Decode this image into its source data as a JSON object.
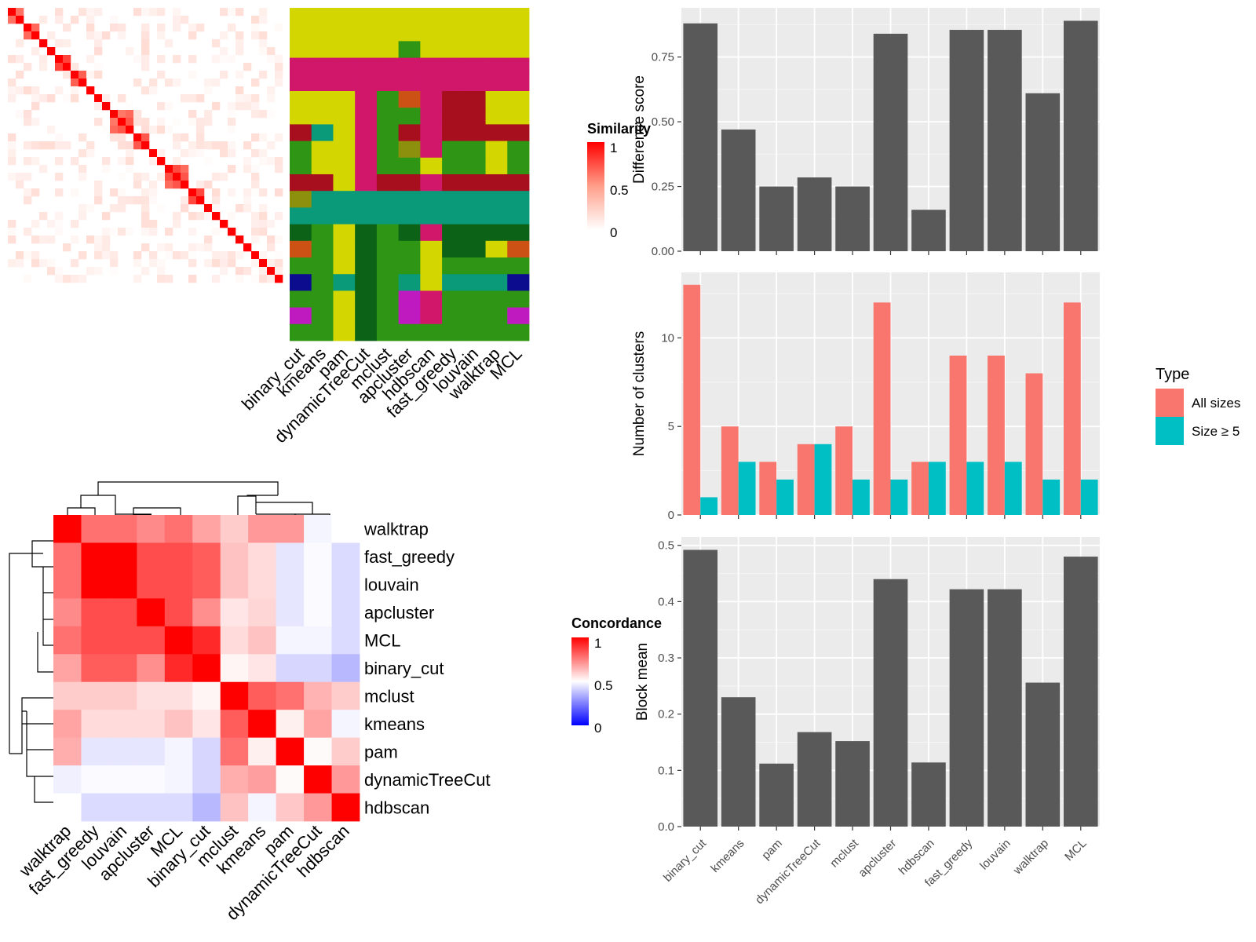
{
  "methods": [
    "binary_cut",
    "kmeans",
    "pam",
    "dynamicTreeCut",
    "mclust",
    "apcluster",
    "hdbscan",
    "fast_greedy",
    "louvain",
    "walktrap",
    "MCL"
  ],
  "heatmap_top": {
    "legend_title": "Similarity",
    "legend_ticks": [
      "1",
      "0.5",
      "0"
    ],
    "block_sizes": [
      2,
      2,
      1,
      1,
      2,
      2,
      1,
      1,
      1,
      3,
      2,
      1,
      1,
      3,
      2,
      1,
      1,
      1,
      1,
      1,
      1,
      1,
      1,
      1,
      1
    ],
    "class_palette": [
      "#d3d600",
      "#d1176a",
      "#a70f1f",
      "#0a9a79",
      "#2e9614",
      "#0c6317",
      "#cc5115",
      "#8c900c",
      "#0b0c8e",
      "#bf19c0"
    ],
    "row_classes": [
      [
        0,
        0,
        0,
        0,
        0,
        0,
        0,
        0,
        0,
        0,
        0
      ],
      [
        0,
        0,
        0,
        0,
        0,
        0,
        0,
        0,
        0,
        0,
        0
      ],
      [
        0,
        0,
        0,
        0,
        0,
        4,
        0,
        0,
        0,
        0,
        0
      ],
      [
        1,
        1,
        1,
        1,
        1,
        1,
        1,
        1,
        1,
        1,
        1
      ],
      [
        1,
        1,
        1,
        1,
        1,
        1,
        1,
        1,
        1,
        1,
        1
      ],
      [
        0,
        0,
        0,
        1,
        4,
        6,
        1,
        2,
        2,
        0,
        0
      ],
      [
        0,
        0,
        0,
        1,
        4,
        4,
        1,
        2,
        2,
        0,
        0
      ],
      [
        2,
        3,
        0,
        1,
        4,
        2,
        1,
        2,
        2,
        2,
        2
      ],
      [
        4,
        0,
        0,
        1,
        4,
        7,
        1,
        4,
        4,
        0,
        4
      ],
      [
        4,
        0,
        0,
        1,
        4,
        4,
        0,
        4,
        4,
        0,
        4
      ],
      [
        2,
        2,
        0,
        1,
        2,
        2,
        1,
        2,
        2,
        2,
        2
      ],
      [
        7,
        3,
        3,
        3,
        3,
        3,
        3,
        3,
        3,
        3,
        3
      ],
      [
        3,
        3,
        3,
        3,
        3,
        3,
        3,
        3,
        3,
        3,
        3
      ],
      [
        5,
        4,
        0,
        5,
        4,
        5,
        1,
        5,
        5,
        5,
        5
      ],
      [
        6,
        4,
        0,
        5,
        4,
        4,
        0,
        5,
        5,
        0,
        6
      ],
      [
        4,
        4,
        0,
        5,
        4,
        4,
        0,
        4,
        4,
        4,
        4
      ],
      [
        8,
        4,
        3,
        5,
        4,
        3,
        0,
        3,
        3,
        3,
        8
      ],
      [
        4,
        4,
        0,
        5,
        4,
        9,
        1,
        4,
        4,
        4,
        4
      ],
      [
        9,
        4,
        0,
        5,
        4,
        9,
        1,
        4,
        4,
        4,
        9
      ],
      [
        4,
        4,
        0,
        5,
        4,
        4,
        4,
        4,
        4,
        4,
        4
      ]
    ]
  },
  "heatmap_bottom": {
    "legend_title": "Concordance",
    "legend_ticks": [
      "1",
      "0.5",
      "0"
    ],
    "order": [
      "walktrap",
      "fast_greedy",
      "louvain",
      "apcluster",
      "MCL",
      "binary_cut",
      "mclust",
      "kmeans",
      "pam",
      "dynamicTreeCut",
      "hdbscan"
    ],
    "matrix": [
      [
        1.0,
        0.78,
        0.78,
        0.73,
        0.78,
        0.68,
        0.6,
        0.7,
        0.7,
        0.48,
        0.5
      ],
      [
        0.78,
        1.0,
        1.0,
        0.85,
        0.85,
        0.82,
        0.62,
        0.57,
        0.45,
        0.49,
        0.43
      ],
      [
        0.78,
        1.0,
        1.0,
        0.85,
        0.85,
        0.82,
        0.62,
        0.57,
        0.45,
        0.49,
        0.43
      ],
      [
        0.73,
        0.85,
        0.85,
        1.0,
        0.85,
        0.72,
        0.55,
        0.58,
        0.45,
        0.49,
        0.43
      ],
      [
        0.78,
        0.85,
        0.85,
        0.85,
        1.0,
        0.92,
        0.57,
        0.62,
        0.48,
        0.48,
        0.43
      ],
      [
        0.68,
        0.82,
        0.82,
        0.72,
        0.92,
        1.0,
        0.52,
        0.55,
        0.42,
        0.42,
        0.36
      ],
      [
        0.6,
        0.6,
        0.6,
        0.56,
        0.56,
        0.52,
        1.0,
        0.82,
        0.78,
        0.65,
        0.6
      ],
      [
        0.68,
        0.57,
        0.57,
        0.57,
        0.62,
        0.55,
        0.82,
        1.0,
        0.53,
        0.68,
        0.48
      ],
      [
        0.66,
        0.45,
        0.45,
        0.45,
        0.48,
        0.42,
        0.78,
        0.53,
        1.0,
        0.51,
        0.6
      ],
      [
        0.47,
        0.49,
        0.49,
        0.49,
        0.48,
        0.42,
        0.66,
        0.69,
        0.51,
        1.0,
        0.7
      ],
      [
        0.5,
        0.43,
        0.43,
        0.43,
        0.43,
        0.36,
        0.62,
        0.48,
        0.61,
        0.7,
        1.0
      ]
    ]
  },
  "chart_data": [
    {
      "type": "bar",
      "categories": [
        "binary_cut",
        "kmeans",
        "pam",
        "dynamicTreeCut",
        "mclust",
        "apcluster",
        "hdbscan",
        "fast_greedy",
        "louvain",
        "walktrap",
        "MCL"
      ],
      "values": [
        0.88,
        0.47,
        0.25,
        0.285,
        0.25,
        0.84,
        0.16,
        0.855,
        0.855,
        0.61,
        0.89
      ],
      "title": "",
      "xlabel": "",
      "ylabel": "Difference score",
      "ylim": [
        0,
        0.94
      ],
      "yticks": [
        "0.00",
        "0.25",
        "0.50",
        "0.75"
      ],
      "grid": true,
      "color": "#595959"
    },
    {
      "type": "bar",
      "categories": [
        "binary_cut",
        "kmeans",
        "pam",
        "dynamicTreeCut",
        "mclust",
        "apcluster",
        "hdbscan",
        "fast_greedy",
        "louvain",
        "walktrap",
        "MCL"
      ],
      "series": [
        {
          "name": "All sizes",
          "values": [
            13,
            5,
            3,
            4,
            5,
            12,
            3,
            9,
            9,
            8,
            12
          ],
          "color": "#f8766d"
        },
        {
          "name": "Size ≥ 5",
          "values": [
            1,
            3,
            2,
            4,
            2,
            2,
            3,
            3,
            3,
            2,
            2
          ],
          "color": "#00bfc4"
        }
      ],
      "title": "",
      "xlabel": "",
      "ylabel": "Number of clusters",
      "ylim": [
        0,
        13.7
      ],
      "yticks": [
        "0",
        "5",
        "10"
      ],
      "legend": {
        "title": "Type",
        "position": "right"
      },
      "grid": true
    },
    {
      "type": "bar",
      "categories": [
        "binary_cut",
        "kmeans",
        "pam",
        "dynamicTreeCut",
        "mclust",
        "apcluster",
        "hdbscan",
        "fast_greedy",
        "louvain",
        "walktrap",
        "MCL"
      ],
      "values": [
        0.492,
        0.23,
        0.112,
        0.168,
        0.152,
        0.44,
        0.114,
        0.422,
        0.422,
        0.256,
        0.48
      ],
      "title": "",
      "xlabel": "",
      "ylabel": "Block mean",
      "ylim": [
        0,
        0.515
      ],
      "yticks": [
        "0.0",
        "0.1",
        "0.2",
        "0.3",
        "0.4",
        "0.5"
      ],
      "grid": true,
      "color": "#595959"
    }
  ]
}
